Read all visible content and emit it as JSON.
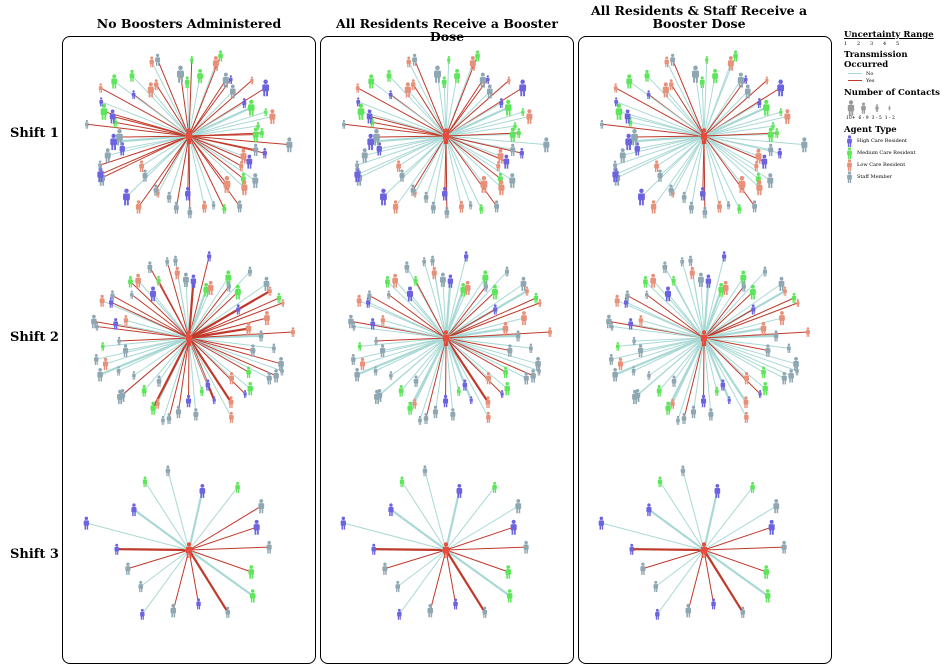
{
  "columns": [
    "No Boosters Administered",
    "All Residents Receive a Booster Dose",
    "All Residents & Staff Receive a Booster Dose"
  ],
  "rows": [
    "Shift 1",
    "Shift 2",
    "Shift 3"
  ],
  "legend": {
    "uncertainty_title": "Uncertainty Range",
    "uncertainty_ticks": [
      "1",
      "2",
      "3",
      "4",
      "5"
    ],
    "transmission_title": "Transmission Occurred",
    "transmission_items": [
      {
        "label": "No",
        "color": "#a9d9d5"
      },
      {
        "label": "Yes",
        "color": "#c0392b"
      }
    ],
    "contacts_title": "Number of Contacts",
    "contacts_items": [
      "10+",
      "6 - 9",
      "3 - 5",
      "1 - 2"
    ],
    "agent_title": "Agent Type",
    "agent_items": [
      {
        "label": "High Care Resident",
        "color": "#6b63df"
      },
      {
        "label": "Medium Care Resident",
        "color": "#5ee65b"
      },
      {
        "label": "Low Care Resident",
        "color": "#e8917a"
      },
      {
        "label": "Staff Member",
        "color": "#8fa7b2"
      }
    ]
  },
  "colors": {
    "no_transmission": "#a9d9d5",
    "transmission": "#c0392b",
    "center": "#e74c3c"
  }
}
